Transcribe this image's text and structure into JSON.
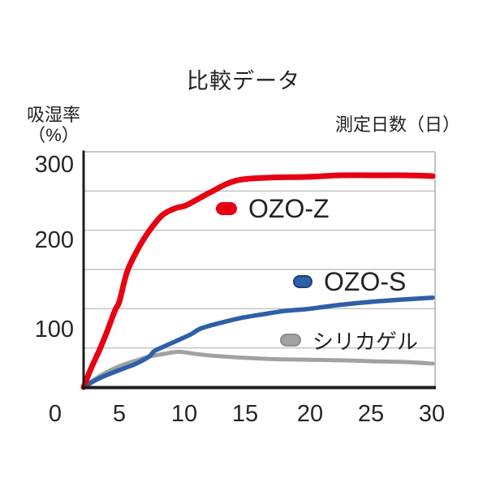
{
  "page": {
    "background": "#ffffff"
  },
  "title": "比較データ",
  "y_axis_title": {
    "line1": "吸湿率",
    "line2": "（%）"
  },
  "x_axis_title": "測定日数（日）",
  "colors": {
    "ozo_z": "#e60012",
    "ozo_s": "#2e5fa7",
    "silica_gel": "#a0a1a1",
    "axis": "#1c1c1c",
    "gridline": "#b5b5b5",
    "text": "#222222"
  },
  "chart_data": {
    "type": "line",
    "title": "比較データ",
    "xlabel": "測定日数（日）",
    "ylabel": "吸湿率（%）",
    "xlim": [
      0,
      30
    ],
    "ylim": [
      0,
      300
    ],
    "x_ticks": [
      "0",
      "5",
      "10",
      "15",
      "20",
      "25",
      "30"
    ],
    "y_ticks": [
      "300",
      "200",
      "100"
    ],
    "grid": true,
    "gridline_interval": 50,
    "legend_position": "inline labels next to curves",
    "series": [
      {
        "name": "OZO-Z",
        "color": "#e60012",
        "points": [
          [
            0,
            0
          ],
          [
            1,
            23
          ],
          [
            2.2,
            47
          ],
          [
            3.2,
            69
          ],
          [
            4.4,
            98
          ],
          [
            5,
            109
          ],
          [
            5.6,
            147
          ],
          [
            6.4,
            175
          ],
          [
            7.3,
            199
          ],
          [
            8.3,
            219
          ],
          [
            9.3,
            228
          ],
          [
            10.2,
            232
          ],
          [
            12.1,
            248
          ],
          [
            14.2,
            263
          ],
          [
            16.8,
            267
          ],
          [
            19.9,
            268
          ],
          [
            22.4,
            270
          ],
          [
            25.2,
            270
          ],
          [
            27.8,
            270
          ],
          [
            30,
            269
          ]
        ]
      },
      {
        "name": "OZO-S",
        "color": "#2e5fa7",
        "points": [
          [
            0,
            0
          ],
          [
            1.9,
            10
          ],
          [
            3.4,
            16
          ],
          [
            5.2,
            23
          ],
          [
            6.3,
            30
          ],
          [
            7.3,
            39
          ],
          [
            7.7,
            46
          ],
          [
            8.6,
            53
          ],
          [
            9.4,
            59
          ],
          [
            10.5,
            67
          ],
          [
            11.4,
            75
          ],
          [
            13,
            82
          ],
          [
            14.6,
            88
          ],
          [
            16.4,
            93
          ],
          [
            18,
            97
          ],
          [
            20,
            100
          ],
          [
            22.5,
            105
          ],
          [
            25.2,
            109
          ],
          [
            27.9,
            112
          ],
          [
            30,
            114
          ]
        ]
      },
      {
        "name": "シリカゲル",
        "color": "#a0a1a1",
        "points": [
          [
            0,
            0
          ],
          [
            1.7,
            11
          ],
          [
            3.4,
            20
          ],
          [
            5.2,
            28
          ],
          [
            6.3,
            34
          ],
          [
            7.3,
            39
          ],
          [
            8.3,
            42
          ],
          [
            9.6,
            45
          ],
          [
            11.1,
            42
          ],
          [
            13.3,
            39
          ],
          [
            16.8,
            36
          ],
          [
            19.9,
            35
          ],
          [
            23.2,
            34
          ],
          [
            25.2,
            33
          ],
          [
            27.9,
            32
          ],
          [
            30,
            30
          ]
        ]
      }
    ]
  }
}
